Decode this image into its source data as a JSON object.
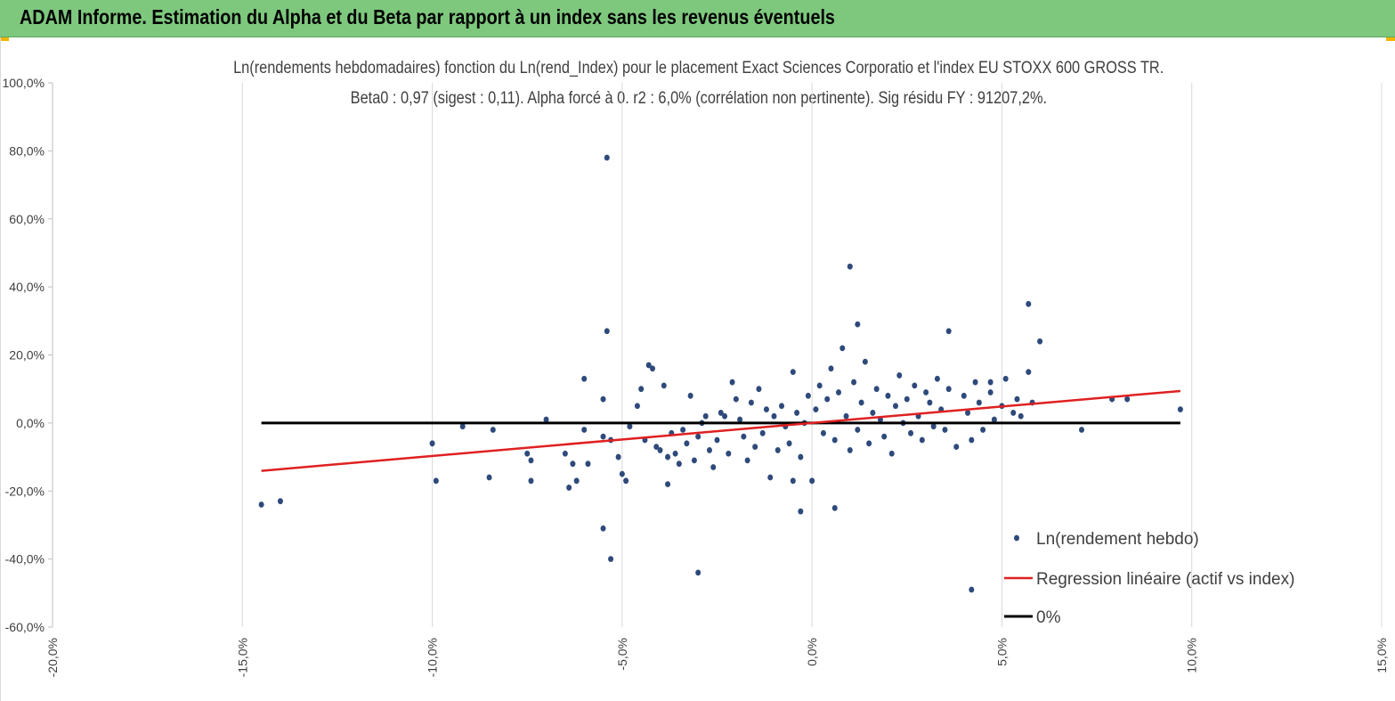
{
  "header": {
    "title": "ADAM Informe. Estimation du Alpha et du Beta par rapport à un index sans les revenus éventuels",
    "accent_color": "#7ec87e",
    "corner_color": "#f0b400"
  },
  "chart_data": {
    "type": "scatter",
    "title_line1": "Ln(rendements hebdomadaires) fonction du Ln(rend_Index) pour le placement Exact Sciences Corporatio et l'index EU STOXX 600 GROSS TR.",
    "title_line2": "Beta0 : 0,97 (sigest : 0,11). Alpha forcé à 0. r2 : 6,0% (corrélation non pertinente). Sig résidu FY : 91207,2%.",
    "xlabel": "",
    "ylabel": "",
    "xlim": [
      -0.2,
      0.15
    ],
    "ylim": [
      -0.6,
      1.0
    ],
    "x_ticks": [
      -0.2,
      -0.15,
      -0.1,
      -0.05,
      0.0,
      0.05,
      0.1,
      0.15
    ],
    "y_ticks": [
      -0.6,
      -0.4,
      -0.2,
      0.0,
      0.2,
      0.4,
      0.6,
      0.8,
      1.0
    ],
    "x_tick_labels": [
      "-20,0%",
      "-15,0%",
      "-10,0%",
      "-5,0%",
      "0,0%",
      "5,0%",
      "10,0%",
      "15,0%"
    ],
    "y_tick_labels": [
      "-60,0%",
      "-40,0%",
      "-20,0%",
      "0,0%",
      "20,0%",
      "40,0%",
      "60,0%",
      "80,0%",
      "100,0%"
    ],
    "grid": "vertical",
    "legend_position": "bottom-right",
    "series": [
      {
        "name": "Ln(rendement hebdo)",
        "kind": "scatter",
        "color": "#2e4a7a",
        "x": [
          -0.145,
          -0.14,
          -0.1,
          -0.099,
          -0.092,
          -0.085,
          -0.084,
          -0.075,
          -0.074,
          -0.074,
          -0.07,
          -0.065,
          -0.064,
          -0.063,
          -0.062,
          -0.06,
          -0.06,
          -0.059,
          -0.055,
          -0.055,
          -0.054,
          -0.053,
          -0.053,
          -0.051,
          -0.05,
          -0.049,
          -0.048,
          -0.046,
          -0.045,
          -0.044,
          -0.043,
          -0.042,
          -0.041,
          -0.04,
          -0.039,
          -0.038,
          -0.037,
          -0.036,
          -0.035,
          -0.034,
          -0.033,
          -0.032,
          -0.031,
          -0.03,
          -0.029,
          -0.028,
          -0.027,
          -0.026,
          -0.025,
          -0.024,
          -0.023,
          -0.022,
          -0.021,
          -0.02,
          -0.019,
          -0.018,
          -0.017,
          -0.016,
          -0.015,
          -0.014,
          -0.013,
          -0.012,
          -0.011,
          -0.01,
          -0.009,
          -0.008,
          -0.007,
          -0.006,
          -0.005,
          -0.004,
          -0.003,
          -0.002,
          -0.001,
          0.0,
          0.001,
          0.002,
          0.003,
          0.004,
          0.005,
          0.006,
          0.007,
          0.008,
          0.009,
          0.01,
          0.011,
          0.012,
          0.013,
          0.014,
          0.015,
          0.016,
          0.017,
          0.018,
          0.019,
          0.02,
          0.021,
          0.022,
          0.023,
          0.024,
          0.025,
          0.026,
          0.027,
          0.028,
          0.029,
          0.03,
          0.031,
          0.032,
          0.033,
          0.034,
          0.035,
          0.036,
          0.038,
          0.04,
          0.041,
          0.042,
          0.043,
          0.044,
          0.045,
          0.047,
          0.048,
          0.05,
          0.051,
          0.053,
          0.054,
          0.055,
          0.057,
          0.058,
          0.06,
          0.071,
          0.079,
          0.083,
          0.097,
          -0.054,
          -0.005,
          0.01,
          0.057,
          0.012,
          -0.03,
          0.047,
          0.042,
          -0.038,
          -0.055,
          -0.003,
          0.006,
          0.036
        ],
        "y": [
          -0.24,
          -0.23,
          -0.06,
          -0.17,
          -0.01,
          -0.16,
          -0.02,
          -0.09,
          -0.11,
          -0.17,
          0.01,
          -0.09,
          -0.19,
          -0.12,
          -0.17,
          0.13,
          -0.02,
          -0.12,
          0.07,
          -0.04,
          0.27,
          -0.05,
          -0.4,
          -0.1,
          -0.15,
          -0.17,
          -0.01,
          0.05,
          0.1,
          -0.05,
          0.17,
          0.16,
          -0.07,
          -0.08,
          0.11,
          -0.1,
          -0.03,
          -0.09,
          -0.12,
          -0.02,
          -0.06,
          0.08,
          -0.11,
          -0.04,
          0.0,
          0.02,
          -0.08,
          -0.13,
          -0.05,
          0.03,
          0.02,
          -0.09,
          0.12,
          0.07,
          0.01,
          -0.04,
          -0.11,
          0.06,
          -0.07,
          0.1,
          -0.03,
          0.04,
          -0.16,
          0.02,
          -0.08,
          0.05,
          -0.01,
          -0.06,
          0.15,
          0.03,
          -0.1,
          0.0,
          0.08,
          -0.17,
          0.04,
          0.11,
          -0.03,
          0.07,
          0.16,
          -0.05,
          0.09,
          0.22,
          0.02,
          -0.08,
          0.12,
          -0.02,
          0.06,
          0.18,
          -0.06,
          0.03,
          0.1,
          0.01,
          -0.04,
          0.08,
          -0.09,
          0.05,
          0.14,
          0.0,
          0.07,
          -0.03,
          0.11,
          0.02,
          -0.05,
          0.09,
          0.06,
          -0.01,
          0.13,
          0.04,
          -0.02,
          0.1,
          -0.07,
          0.08,
          0.03,
          -0.05,
          0.12,
          0.06,
          -0.02,
          0.09,
          0.01,
          0.05,
          0.13,
          0.03,
          0.07,
          0.02,
          0.15,
          0.06,
          0.24,
          -0.02,
          0.07,
          0.07,
          0.04,
          0.78,
          -0.17,
          0.46,
          0.35,
          0.29,
          -0.44,
          0.12,
          -0.49,
          -0.18,
          -0.31,
          -0.26,
          -0.25,
          0.27
        ],
        "count_label": ""
      },
      {
        "name": "Regression linéaire (actif vs index)",
        "kind": "line",
        "color": "#e02020",
        "slope": 0.97,
        "intercept": 0.0
      },
      {
        "name": "0%",
        "kind": "line",
        "color": "#000000",
        "slope": 0.0,
        "intercept": 0.0
      }
    ]
  }
}
